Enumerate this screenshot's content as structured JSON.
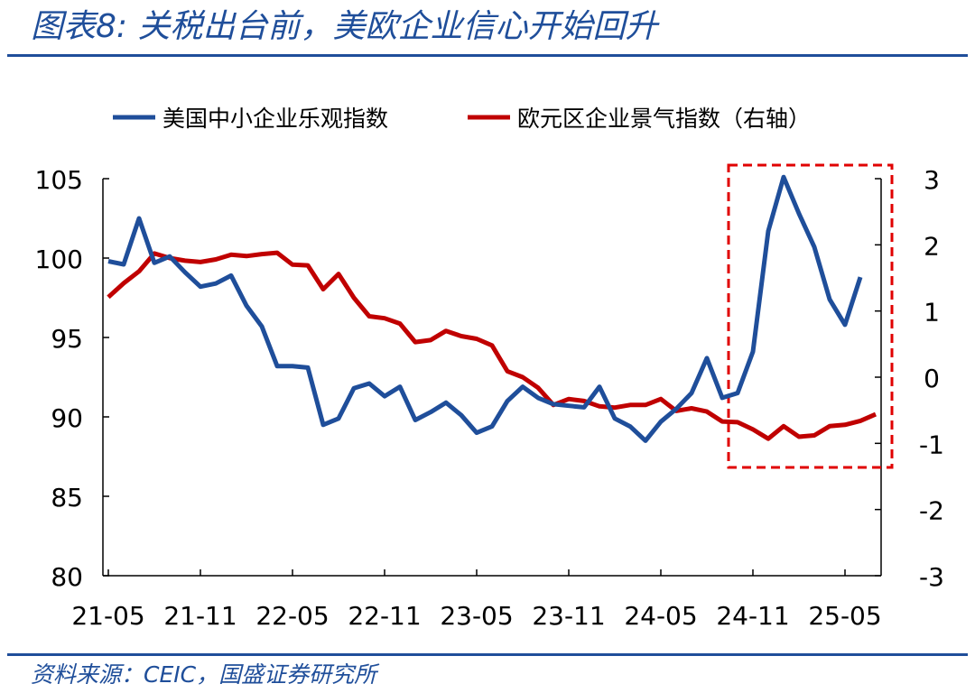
{
  "header": {
    "title": "图表8: 关税出台前，美欧企业信心开始回升"
  },
  "footer": {
    "source": "资料来源：CEIC，国盛证券研究所"
  },
  "chart_data": {
    "type": "line",
    "title": "",
    "x_tick_labels": [
      "21-05",
      "21-11",
      "22-05",
      "22-11",
      "23-05",
      "23-11",
      "24-05",
      "24-11",
      "25-05"
    ],
    "x_start": "21-05",
    "x_end": "25-05",
    "y_left_lim": [
      80,
      105
    ],
    "y_left_ticks": [
      "80",
      "85",
      "90",
      "95",
      "100",
      "105"
    ],
    "y_right_lim": [
      -3,
      3
    ],
    "y_right_ticks": [
      "-3",
      "-2",
      "-1",
      "0",
      "1",
      "2",
      "3"
    ],
    "grid": false,
    "legend_position": "top-center",
    "highlight_box": {
      "x_from": "24-10",
      "x_to": "25-05",
      "color": "#e00000",
      "style": "dashed"
    },
    "series": [
      {
        "name": "美国中小企业乐观指数",
        "axis": "left",
        "color": "#1f4e9a",
        "values": [
          99.8,
          99.6,
          102.5,
          99.7,
          100.1,
          99.1,
          98.2,
          98.4,
          98.9,
          97.0,
          95.7,
          93.2,
          93.2,
          93.1,
          89.5,
          89.9,
          91.8,
          92.1,
          91.3,
          91.9,
          89.8,
          90.3,
          90.9,
          90.1,
          89.0,
          89.4,
          91.0,
          91.9,
          91.2,
          90.8,
          90.7,
          90.6,
          91.9,
          89.9,
          89.4,
          88.5,
          89.7,
          90.5,
          91.5,
          93.7,
          91.2,
          91.5,
          94.1,
          101.7,
          105.1,
          102.8,
          100.7,
          97.4,
          95.8,
          98.8
        ]
      },
      {
        "name": "欧元区企业景气指数（右轴）",
        "axis": "right",
        "color": "#c00000",
        "values": [
          1.21,
          1.42,
          1.6,
          1.87,
          1.8,
          1.76,
          1.74,
          1.78,
          1.85,
          1.83,
          1.86,
          1.88,
          1.7,
          1.69,
          1.33,
          1.56,
          1.2,
          0.92,
          0.89,
          0.81,
          0.53,
          0.56,
          0.7,
          0.62,
          0.58,
          0.48,
          0.09,
          0.0,
          -0.16,
          -0.42,
          -0.33,
          -0.36,
          -0.44,
          -0.46,
          -0.42,
          -0.42,
          -0.33,
          -0.51,
          -0.47,
          -0.52,
          -0.67,
          -0.68,
          -0.79,
          -0.93,
          -0.74,
          -0.9,
          -0.88,
          -0.74,
          -0.72,
          -0.66,
          -0.56
        ]
      }
    ]
  }
}
